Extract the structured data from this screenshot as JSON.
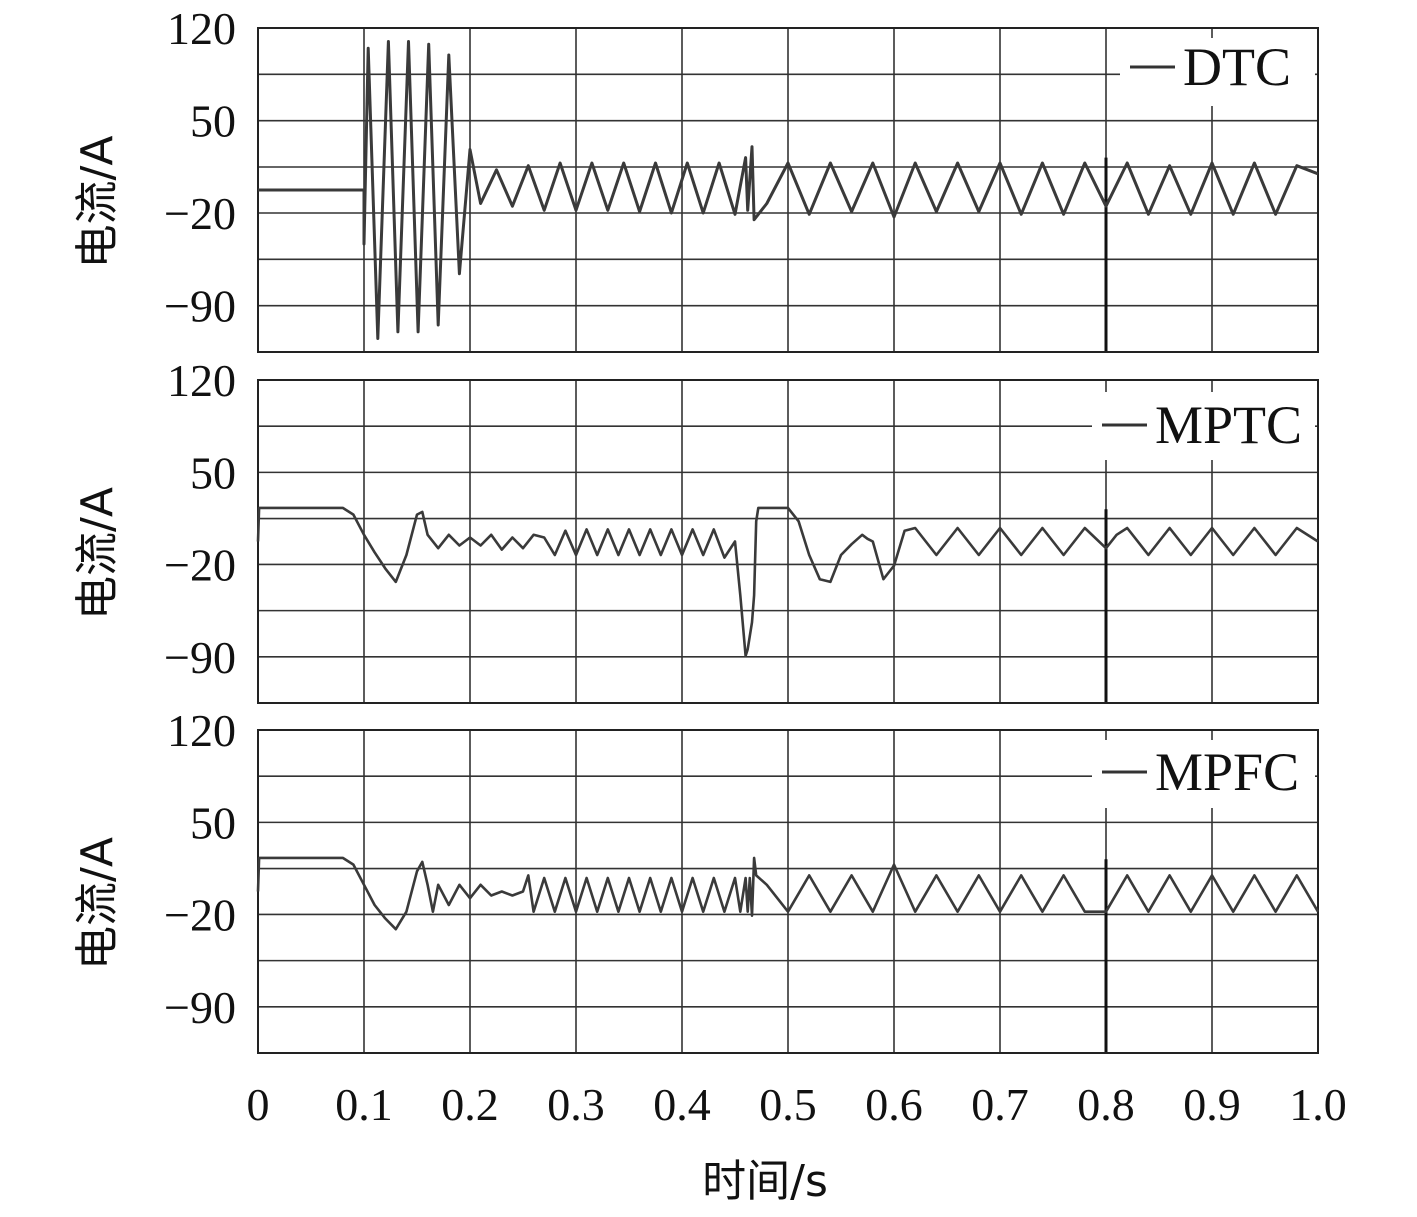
{
  "chart_data": {
    "type": "line",
    "xlabel": "时间/s",
    "xlim": [
      0,
      1.0
    ],
    "x_ticks": [
      "0",
      "0.1",
      "0.2",
      "0.3",
      "0.4",
      "0.5",
      "0.6",
      "0.7",
      "0.8",
      "0.9",
      "1.0"
    ],
    "panels": [
      {
        "name": "DTC",
        "ylabel": "电流/A",
        "ylim": [
          -120,
          120
        ],
        "y_ticks": [
          "120",
          "50",
          "−20",
          "−90"
        ],
        "grid": true,
        "legend": "top-right",
        "series": [
          {
            "name": "DTC",
            "x": [
              0,
              0.1,
              0.1,
              0.104,
              0.113,
              0.123,
              0.132,
              0.142,
              0.151,
              0.161,
              0.17,
              0.18,
              0.19,
              0.2,
              0.21,
              0.225,
              0.24,
              0.255,
              0.27,
              0.285,
              0.3,
              0.315,
              0.33,
              0.345,
              0.36,
              0.375,
              0.39,
              0.405,
              0.42,
              0.435,
              0.45,
              0.46,
              0.462,
              0.466,
              0.468,
              0.48,
              0.5,
              0.52,
              0.54,
              0.56,
              0.58,
              0.6,
              0.62,
              0.64,
              0.66,
              0.68,
              0.7,
              0.72,
              0.74,
              0.76,
              0.78,
              0.8,
              0.82,
              0.84,
              0.86,
              0.88,
              0.9,
              0.92,
              0.94,
              0.96,
              0.98,
              1.0
            ],
            "y": [
              0,
              0,
              -40,
              105,
              -110,
              110,
              -105,
              110,
              -105,
              108,
              -100,
              100,
              -62,
              30,
              -10,
              15,
              -12,
              18,
              -15,
              20,
              -15,
              20,
              -15,
              20,
              -16,
              20,
              -17,
              20,
              -17,
              20,
              -18,
              24,
              -15,
              32,
              -22,
              -10,
              20,
              -18,
              20,
              -16,
              20,
              -20,
              20,
              -16,
              20,
              -16,
              20,
              -18,
              20,
              -18,
              20,
              -12,
              20,
              -18,
              18,
              -18,
              20,
              -18,
              20,
              -18,
              18,
              12
            ]
          }
        ]
      },
      {
        "name": "MPTC",
        "ylabel": "电流/A",
        "ylim": [
          -120,
          120
        ],
        "y_ticks": [
          "120",
          "50",
          "−20",
          "−90"
        ],
        "grid": true,
        "legend": "top-right",
        "series": [
          {
            "name": "MPTC",
            "x": [
              0,
              0.001,
              0.08,
              0.09,
              0.1,
              0.11,
              0.12,
              0.13,
              0.14,
              0.15,
              0.155,
              0.16,
              0.17,
              0.18,
              0.19,
              0.2,
              0.21,
              0.22,
              0.23,
              0.24,
              0.25,
              0.26,
              0.27,
              0.28,
              0.29,
              0.3,
              0.31,
              0.32,
              0.33,
              0.34,
              0.35,
              0.36,
              0.37,
              0.38,
              0.39,
              0.4,
              0.41,
              0.42,
              0.43,
              0.44,
              0.45,
              0.455,
              0.46,
              0.462,
              0.466,
              0.468,
              0.47,
              0.472,
              0.474,
              0.49,
              0.5,
              0.51,
              0.52,
              0.53,
              0.54,
              0.55,
              0.56,
              0.57,
              0.575,
              0.58,
              0.59,
              0.6,
              0.61,
              0.62,
              0.64,
              0.66,
              0.68,
              0.7,
              0.72,
              0.74,
              0.76,
              0.78,
              0.8,
              0.81,
              0.82,
              0.84,
              0.86,
              0.88,
              0.9,
              0.92,
              0.94,
              0.96,
              0.98,
              1.0
            ],
            "y": [
              0,
              25,
              25,
              20,
              5,
              -8,
              -20,
              -30,
              -10,
              20,
              22,
              5,
              -5,
              5,
              -3,
              3,
              -3,
              5,
              -6,
              3,
              -5,
              5,
              3,
              -10,
              8,
              -10,
              9,
              -10,
              9,
              -10,
              9,
              -10,
              9,
              -10,
              9,
              -10,
              9,
              -10,
              9,
              -12,
              0,
              -40,
              -85,
              -80,
              -60,
              -40,
              15,
              25,
              25,
              25,
              25,
              15,
              -10,
              -28,
              -30,
              -10,
              -2,
              5,
              2,
              0,
              -28,
              -18,
              8,
              10,
              -10,
              10,
              -10,
              10,
              -10,
              10,
              -10,
              10,
              -5,
              5,
              10,
              -10,
              10,
              -10,
              10,
              -10,
              10,
              -10,
              10,
              0
            ]
          }
        ]
      },
      {
        "name": "MPFC",
        "ylabel": "电流/A",
        "ylim": [
          -120,
          120
        ],
        "y_ticks": [
          "120",
          "50",
          "−20",
          "−90"
        ],
        "grid": true,
        "legend": "top-right",
        "series": [
          {
            "name": "MPFC",
            "x": [
              0,
              0.001,
              0.08,
              0.09,
              0.1,
              0.11,
              0.12,
              0.13,
              0.14,
              0.15,
              0.155,
              0.16,
              0.165,
              0.17,
              0.18,
              0.19,
              0.2,
              0.21,
              0.22,
              0.23,
              0.24,
              0.25,
              0.255,
              0.26,
              0.27,
              0.28,
              0.29,
              0.3,
              0.31,
              0.32,
              0.33,
              0.34,
              0.35,
              0.36,
              0.37,
              0.38,
              0.39,
              0.4,
              0.41,
              0.42,
              0.43,
              0.44,
              0.45,
              0.455,
              0.46,
              0.462,
              0.464,
              0.466,
              0.468,
              0.47,
              0.48,
              0.5,
              0.52,
              0.54,
              0.56,
              0.58,
              0.6,
              0.62,
              0.64,
              0.66,
              0.68,
              0.7,
              0.72,
              0.74,
              0.76,
              0.78,
              0.8,
              0.82,
              0.84,
              0.86,
              0.88,
              0.9,
              0.92,
              0.94,
              0.96,
              0.98,
              1.0
            ],
            "y": [
              0,
              25,
              25,
              20,
              5,
              -10,
              -20,
              -28,
              -15,
              15,
              22,
              5,
              -15,
              5,
              -10,
              5,
              -5,
              5,
              -3,
              0,
              -3,
              0,
              12,
              -15,
              10,
              -15,
              10,
              -15,
              10,
              -15,
              10,
              -15,
              10,
              -15,
              10,
              -15,
              10,
              -15,
              10,
              -15,
              10,
              -15,
              10,
              -15,
              10,
              -15,
              10,
              -18,
              25,
              12,
              5,
              -15,
              12,
              -15,
              12,
              -15,
              20,
              -15,
              12,
              -15,
              12,
              -15,
              12,
              -15,
              12,
              -15,
              -15,
              12,
              -15,
              12,
              -15,
              12,
              -15,
              12,
              -15,
              12,
              -15
            ]
          }
        ]
      }
    ]
  }
}
